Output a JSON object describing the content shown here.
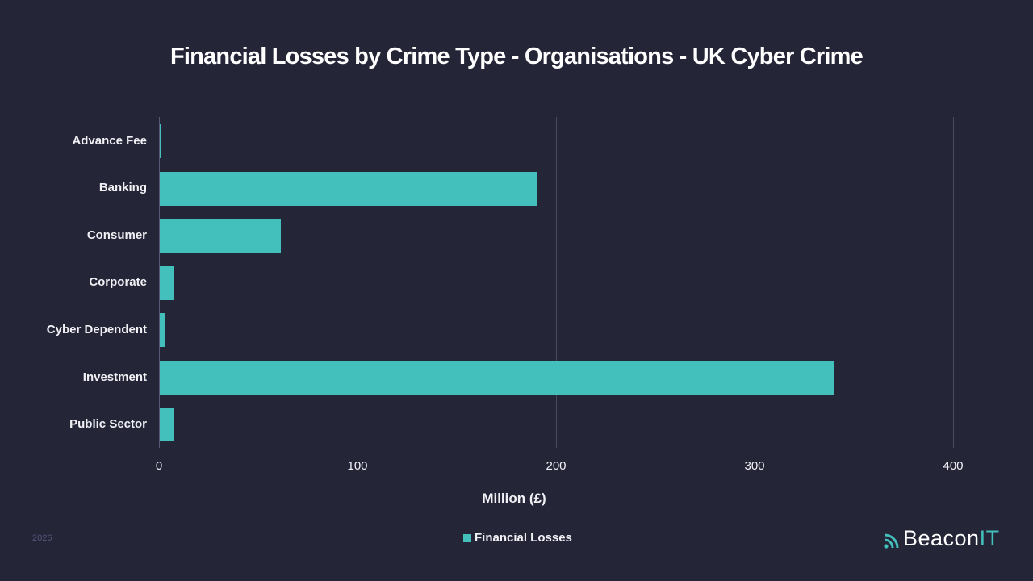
{
  "title": "Financial Losses by Crime Type - Organisations - UK Cyber Crime",
  "footer": {
    "year": "2026",
    "brand": {
      "name_main": "Beacon",
      "name_accent": "IT"
    }
  },
  "legend": {
    "label": "Financial Losses",
    "color": "#43c0bb"
  },
  "chart_data": {
    "type": "bar",
    "orientation": "horizontal",
    "title": "Financial Losses by Crime Type - Organisations - UK Cyber Crime",
    "xlabel": "Million (£)",
    "ylabel": "",
    "xlim": [
      0,
      400
    ],
    "x_ticks": [
      "0",
      "100",
      "200",
      "300",
      "400"
    ],
    "grid": true,
    "legend_position": "bottom",
    "categories": [
      "Advance Fee",
      "Banking",
      "Consumer",
      "Corporate",
      "Cyber Dependent",
      "Investment",
      "Public Sector"
    ],
    "series": [
      {
        "name": "Financial Losses",
        "color": "#43c0bb",
        "values": [
          1,
          190,
          61,
          7,
          2.4,
          340,
          7.3
        ]
      }
    ]
  }
}
